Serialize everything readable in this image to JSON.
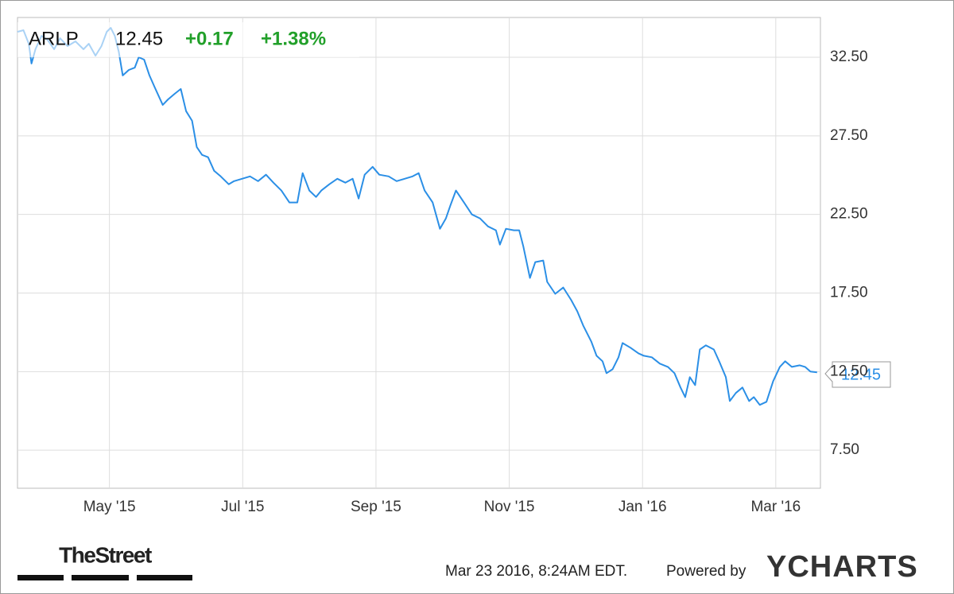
{
  "chart_data": {
    "type": "line",
    "symbol": "ARLP",
    "price": "12.45",
    "change": "+0.17",
    "change_pct": "+1.38%",
    "x": [
      -0.38,
      -0.29,
      -0.21,
      -0.17,
      -0.11,
      -0.02,
      0.07,
      0.17,
      0.26,
      0.37,
      0.49,
      0.61,
      0.69,
      0.79,
      0.88,
      0.96,
      1.02,
      1.08,
      1.14,
      1.2,
      1.29,
      1.38,
      1.44,
      1.52,
      1.6,
      1.68,
      1.8,
      1.88,
      1.98,
      2.07,
      2.15,
      2.24,
      2.31,
      2.39,
      2.48,
      2.57,
      2.67,
      2.79,
      2.87,
      2.99,
      3.11,
      3.23,
      3.35,
      3.46,
      3.58,
      3.7,
      3.82,
      3.9,
      4.0,
      4.1,
      4.18,
      4.3,
      4.42,
      4.54,
      4.65,
      4.74,
      4.83,
      4.95,
      5.05,
      5.19,
      5.31,
      5.43,
      5.55,
      5.64,
      5.73,
      5.85,
      5.9,
      5.96,
      6.05,
      6.12,
      6.2,
      6.32,
      6.44,
      6.56,
      6.68,
      6.8,
      6.86,
      6.95,
      7.07,
      7.15,
      7.21,
      7.31,
      7.39,
      7.51,
      7.57,
      7.69,
      7.81,
      7.93,
      8.02,
      8.11,
      8.23,
      8.31,
      8.4,
      8.46,
      8.55,
      8.64,
      8.7,
      8.82,
      8.94,
      9.02,
      9.14,
      9.26,
      9.38,
      9.48,
      9.57,
      9.64,
      9.71,
      9.79,
      9.86,
      9.95,
      10.07,
      10.15,
      10.25,
      10.31,
      10.4,
      10.5,
      10.6,
      10.67,
      10.76,
      10.86,
      10.96,
      11.06,
      11.14,
      11.24,
      11.36,
      11.44,
      11.52,
      11.62
    ],
    "values": [
      34.12,
      34.22,
      33.36,
      32.1,
      33.01,
      33.86,
      33.61,
      33.01,
      33.71,
      33.21,
      33.51,
      33.01,
      33.36,
      32.6,
      33.21,
      34.12,
      34.37,
      33.86,
      32.85,
      31.34,
      31.69,
      31.84,
      32.5,
      32.35,
      31.34,
      30.58,
      29.47,
      29.82,
      30.18,
      30.48,
      29.07,
      28.46,
      26.79,
      26.29,
      26.14,
      25.28,
      24.92,
      24.42,
      24.62,
      24.77,
      24.92,
      24.62,
      25.03,
      24.52,
      24.02,
      23.26,
      23.26,
      25.13,
      24.02,
      23.61,
      24.02,
      24.42,
      24.77,
      24.52,
      24.77,
      23.51,
      25.03,
      25.53,
      25.03,
      24.92,
      24.62,
      24.77,
      24.92,
      25.13,
      24.02,
      23.26,
      22.5,
      21.59,
      22.25,
      23.11,
      24.02,
      23.26,
      22.5,
      22.25,
      21.74,
      21.49,
      20.58,
      21.59,
      21.49,
      21.49,
      20.48,
      18.46,
      19.47,
      19.57,
      18.21,
      17.45,
      17.85,
      17.05,
      16.34,
      15.43,
      14.42,
      13.51,
      13.16,
      12.4,
      12.65,
      13.41,
      14.32,
      14.02,
      13.66,
      13.51,
      13.41,
      13.01,
      12.8,
      12.4,
      11.49,
      10.88,
      12.15,
      11.64,
      13.91,
      14.17,
      13.91,
      13.16,
      12.15,
      10.63,
      11.14,
      11.49,
      10.63,
      10.88,
      10.38,
      10.58,
      11.89,
      12.8,
      13.16,
      12.8,
      12.9,
      12.8,
      12.5,
      12.45
    ],
    "color": "#2b8fe6",
    "xlim": [
      -0.38,
      11.67
    ],
    "xticks": [
      {
        "value": 1,
        "label": "May '15"
      },
      {
        "value": 3,
        "label": "Jul '15"
      },
      {
        "value": 5,
        "label": "Sep '15"
      },
      {
        "value": 7,
        "label": "Nov '15"
      },
      {
        "value": 9,
        "label": "Jan '16"
      },
      {
        "value": 11,
        "label": "Mar '16"
      }
    ],
    "ylim": [
      5.08,
      35.03
    ],
    "yticks": [
      {
        "value": 7.5,
        "label": "7.50"
      },
      {
        "value": 12.5,
        "label": "12.50"
      },
      {
        "value": 17.5,
        "label": "17.50"
      },
      {
        "value": 22.5,
        "label": "22.50"
      },
      {
        "value": 27.5,
        "label": "27.50"
      },
      {
        "value": 32.5,
        "label": "32.50"
      }
    ],
    "grid": true,
    "source": "TheStreet",
    "timestamp": "Mar 23 2016, 8:24AM EDT.",
    "powered_by": "Powered by",
    "brand": "YCHARTS"
  }
}
